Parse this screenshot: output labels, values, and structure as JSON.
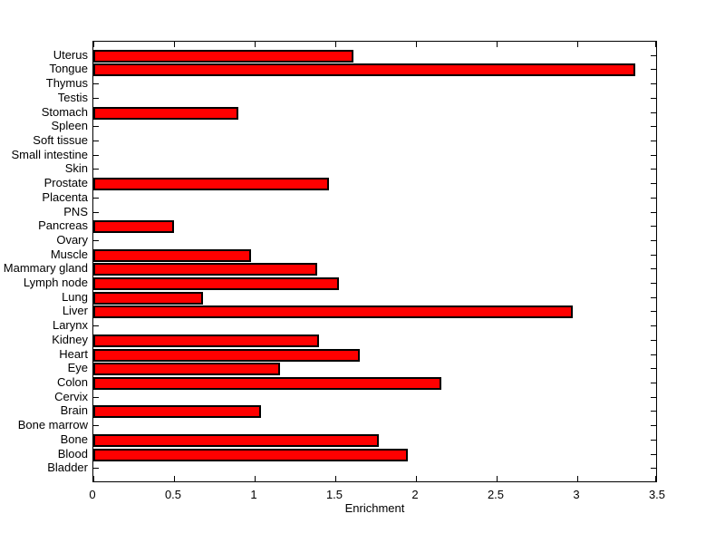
{
  "chart_data": {
    "type": "bar",
    "orientation": "horizontal",
    "title": "",
    "xlabel": "Enrichment",
    "ylabel": "",
    "xlim": [
      0,
      3.5
    ],
    "xticks": [
      0,
      0.5,
      1,
      1.5,
      2,
      2.5,
      3,
      3.5
    ],
    "xtick_labels": [
      "0",
      "0.5",
      "1",
      "1.5",
      "2",
      "2.5",
      "3",
      "3.5"
    ],
    "grid": false,
    "legend": false,
    "bar_color": "#ff0000",
    "bar_edge_color": "#000000",
    "axis_color": "#000000",
    "background_color": "#ffffff",
    "categories": [
      "Uterus",
      "Tongue",
      "Thymus",
      "Testis",
      "Stomach",
      "Spleen",
      "Soft tissue",
      "Small intestine",
      "Skin",
      "Prostate",
      "Placenta",
      "PNS",
      "Pancreas",
      "Ovary",
      "Muscle",
      "Mammary gland",
      "Lymph node",
      "Lung",
      "Liver",
      "Larynx",
      "Kidney",
      "Heart",
      "Eye",
      "Colon",
      "Cervix",
      "Brain",
      "Bone marrow",
      "Bone",
      "Blood",
      "Bladder"
    ],
    "values": [
      1.61,
      3.36,
      0,
      0,
      0.9,
      0,
      0,
      0,
      0,
      1.46,
      0,
      0,
      0.5,
      0,
      0.98,
      1.39,
      1.52,
      0.68,
      2.97,
      0,
      1.4,
      1.65,
      1.16,
      2.16,
      0,
      1.04,
      0,
      1.77,
      1.95,
      0
    ]
  }
}
